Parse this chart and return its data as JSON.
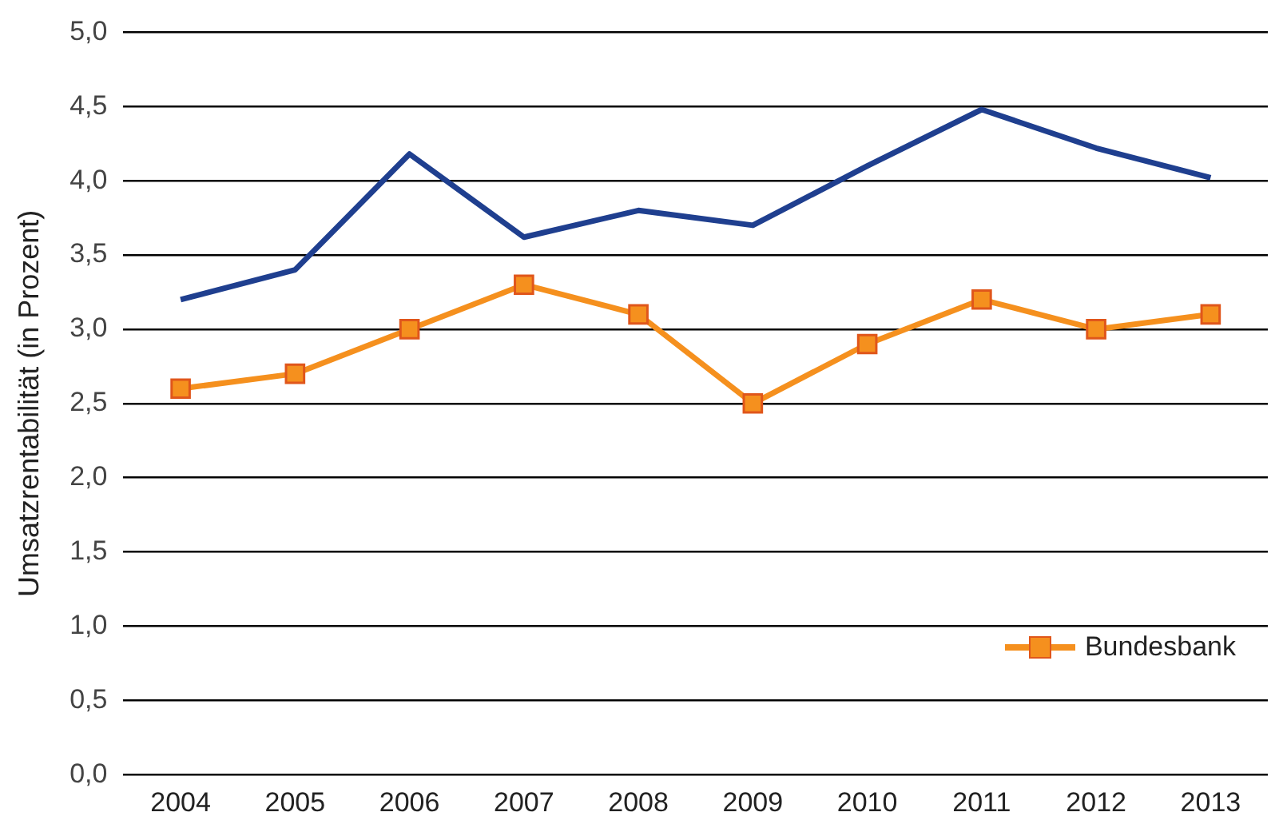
{
  "chart_data": {
    "type": "line",
    "ylabel": "Umsatzrentabilität (in Prozent)",
    "categories": [
      "2004",
      "2005",
      "2006",
      "2007",
      "2008",
      "2009",
      "2010",
      "2011",
      "2012",
      "2013"
    ],
    "series": [
      {
        "color": "#1f3f8f",
        "marker": "none",
        "values": [
          3.2,
          3.4,
          4.18,
          3.62,
          3.8,
          3.7,
          4.1,
          4.48,
          4.22,
          4.02
        ]
      },
      {
        "name": "Bundesbank",
        "color": "#f5901e",
        "marker": "square",
        "values": [
          2.6,
          2.7,
          3.0,
          3.3,
          3.1,
          2.5,
          2.9,
          3.2,
          3.0,
          3.1
        ]
      }
    ],
    "ylim": [
      0,
      5
    ],
    "yticks": [
      {
        "value": 0,
        "label": "0,0"
      },
      {
        "value": 0.5,
        "label": "0,5"
      },
      {
        "value": 1,
        "label": "1,0"
      },
      {
        "value": 1.5,
        "label": "1,5"
      },
      {
        "value": 2,
        "label": "2,0"
      },
      {
        "value": 2.5,
        "label": "2,5"
      },
      {
        "value": 3,
        "label": "3,0"
      },
      {
        "value": 3.5,
        "label": "3,5"
      },
      {
        "value": 4,
        "label": "4,0"
      },
      {
        "value": 4.5,
        "label": "4,5"
      },
      {
        "value": 5,
        "label": "5,0"
      }
    ],
    "grid": "y",
    "legend": "bottom right"
  }
}
